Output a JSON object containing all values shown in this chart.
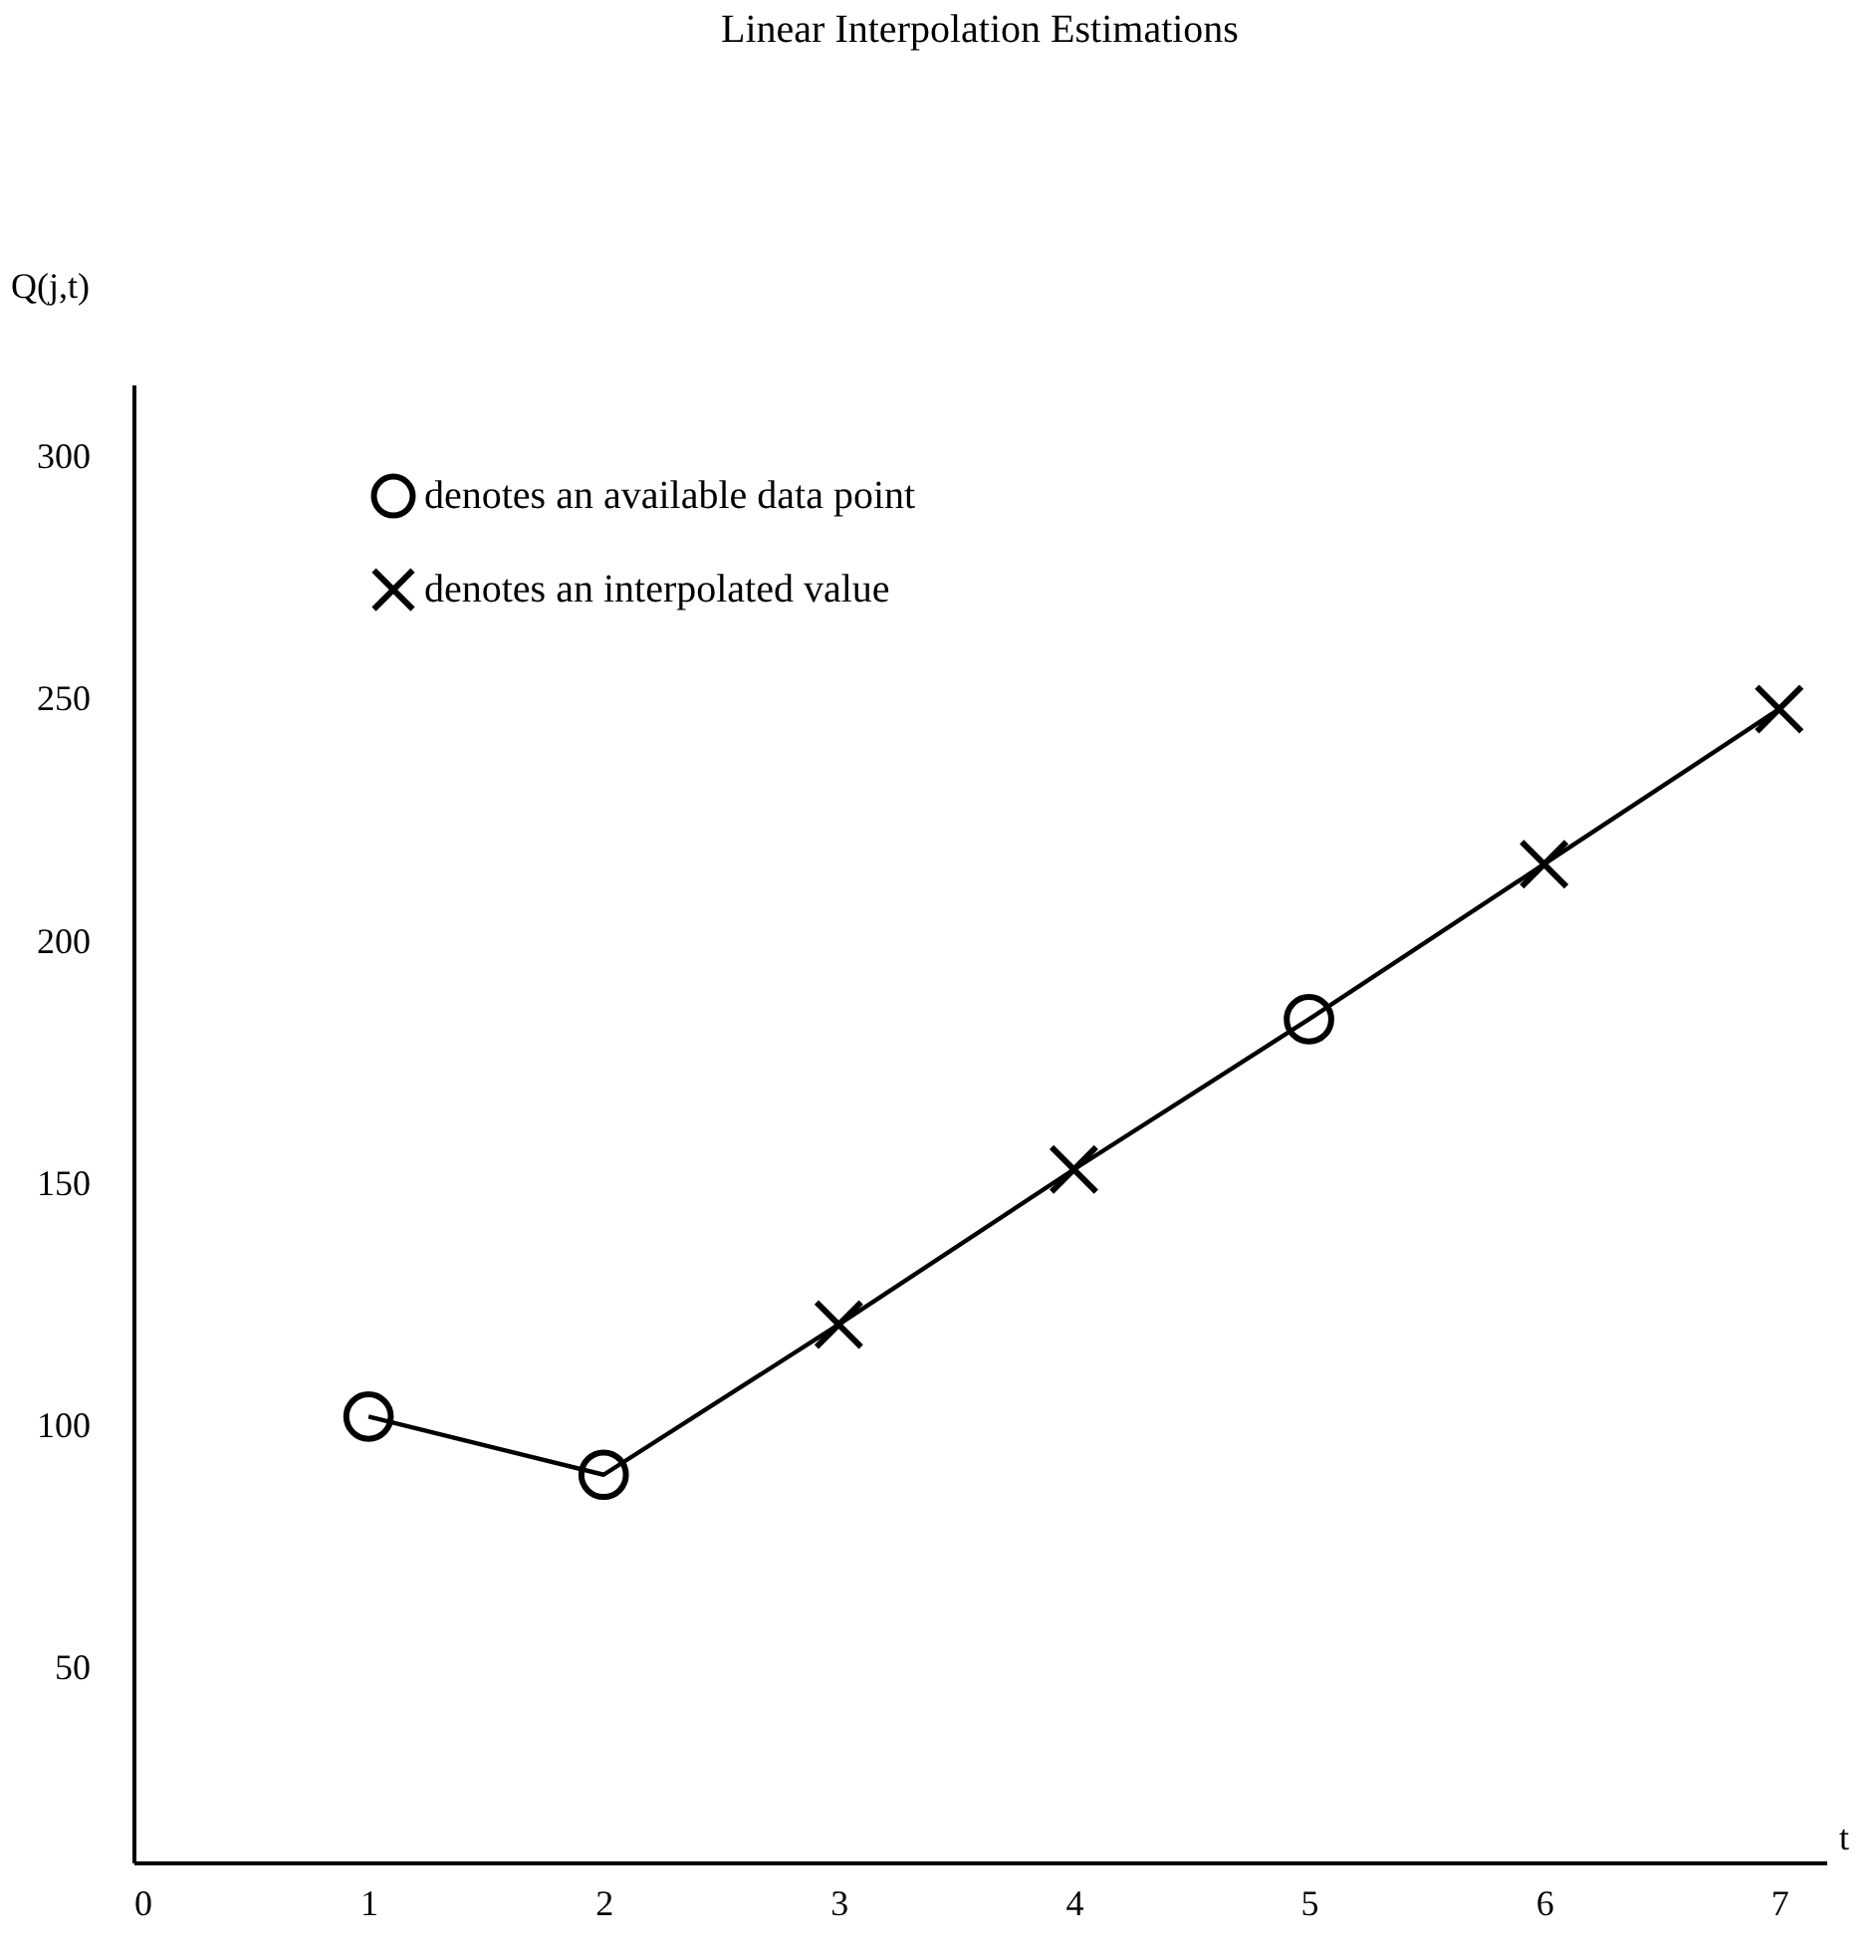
{
  "chart_data": {
    "type": "line",
    "title": "Linear Interpolation Estimations",
    "xlabel": "t",
    "ylabel": "Q(j,t)",
    "x": [
      1,
      2,
      3,
      4,
      5,
      6,
      7
    ],
    "series": [
      {
        "color": "#000000",
        "values": [
          102,
          90,
          121,
          153,
          184,
          216,
          248
        ]
      },
      {
        "type": "scatter",
        "name": "denotes an available data point",
        "color": "#000000",
        "marker": "circle",
        "values": [
          102,
          90,
          null,
          null,
          184,
          null,
          null
        ]
      },
      {
        "type": "scatter",
        "name": "denotes an interpolated value",
        "color": "#000000",
        "marker": "cross",
        "values": [
          null,
          null,
          121,
          153,
          null,
          216,
          248
        ]
      }
    ],
    "xlim": [
      0,
      7.2
    ],
    "xticks": [
      0,
      1,
      2,
      3,
      4,
      5,
      6,
      7
    ],
    "ylim": [
      10,
      315
    ],
    "yticks": [
      50,
      100,
      150,
      200,
      250,
      300
    ],
    "grid": false,
    "legend": "top left"
  }
}
